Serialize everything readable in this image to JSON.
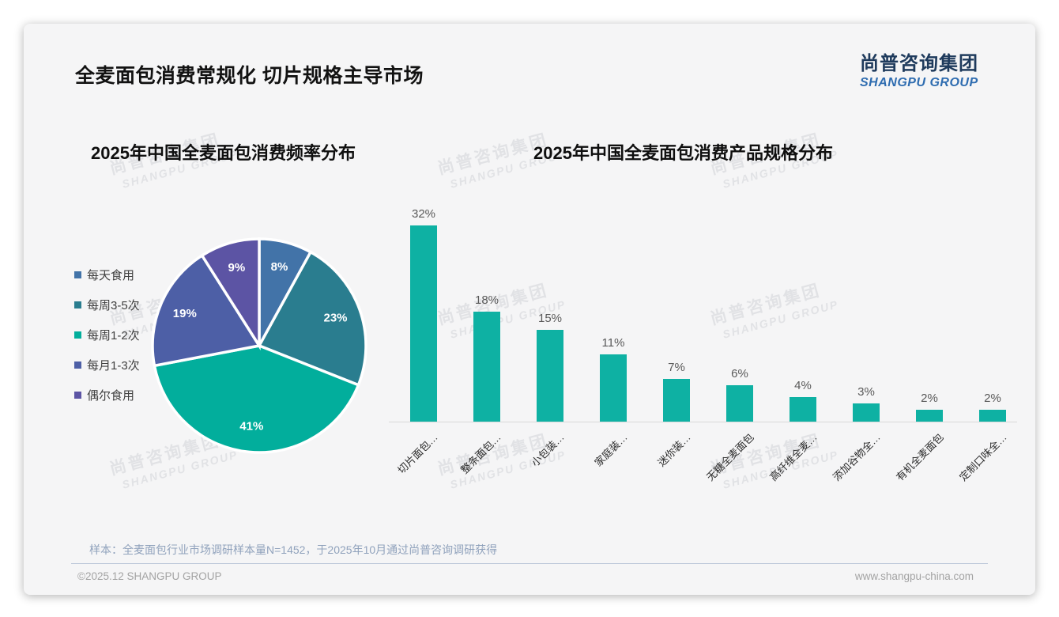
{
  "slide": {
    "title": "全麦面包消费常规化 切片规格主导市场",
    "logo": {
      "cn": "尚普咨询集团",
      "en": "SHANGPU GROUP"
    },
    "watermark": {
      "cn": "尚普咨询集团",
      "en": "SHANGPU GROUP"
    },
    "footnote": "样本：全麦面包行业市场调研样本量N=1452，于2025年10月通过尚普咨询调研获得",
    "footer_left": "©2025.12 SHANGPU GROUP",
    "footer_right": "www.shangpu-china.com"
  },
  "chart_data": [
    {
      "type": "pie",
      "title": "2025年中国全麦面包消费频率分布",
      "categories": [
        "每天食用",
        "每周3-5次",
        "每周1-2次",
        "每月1-3次",
        "偶尔食用"
      ],
      "values": [
        8,
        23,
        41,
        19,
        9
      ],
      "unit": "%",
      "colors": [
        "#4273a8",
        "#2a7d8f",
        "#02ae9c",
        "#4d5fa6",
        "#5c54a4"
      ],
      "legend_position": "left",
      "start_angle_deg": 0,
      "direction": "clockwise",
      "label_format": "percent-inside-white"
    },
    {
      "type": "bar",
      "title": "2025年中国全麦面包消费产品规格分布",
      "categories": [
        "切片面包…",
        "整条面包…",
        "小包装…",
        "家庭装…",
        "迷你装…",
        "无糖全麦面包",
        "高纤维全麦…",
        "添加谷物全…",
        "有机全麦面包",
        "定制口味全…"
      ],
      "values": [
        32,
        18,
        15,
        11,
        7,
        6,
        4,
        3,
        2,
        2
      ],
      "unit": "%",
      "bar_color": "#0eb1a3",
      "ylim": [
        0,
        32
      ],
      "grid": false,
      "value_labels": "above-bars",
      "xtick_rotation_deg": 45
    }
  ]
}
